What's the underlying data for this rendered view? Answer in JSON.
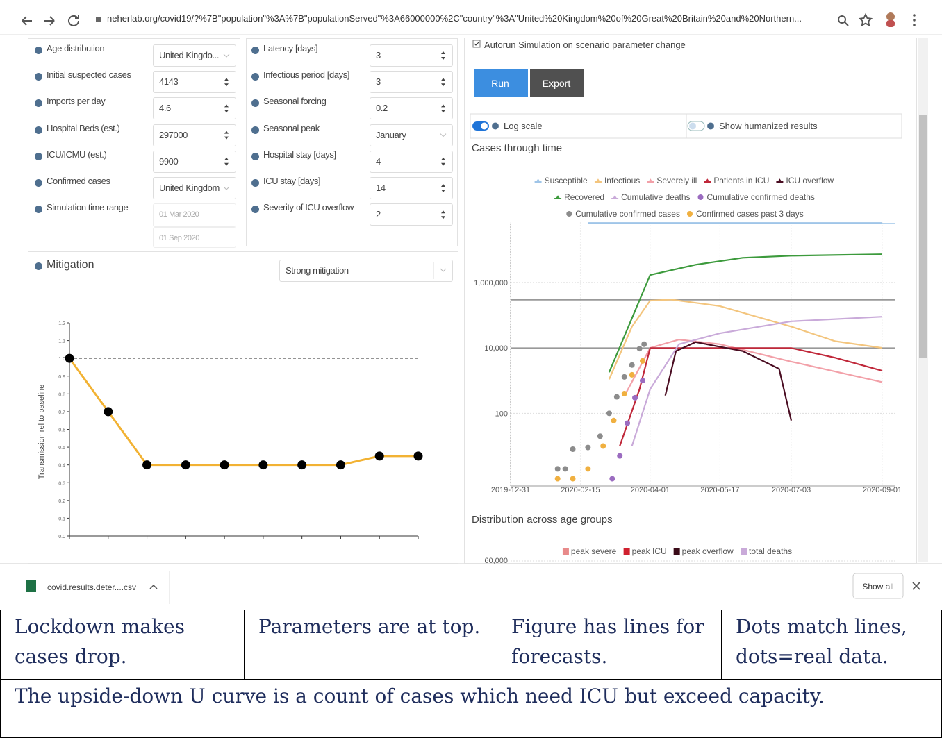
{
  "browser": {
    "url": "neherlab.org/covid19/?%7B\"population\"%3A%7B\"populationServed\"%3A66000000%2C\"country\"%3A\"United%20Kingdom%20of%20Great%20Britain%20and%20Northern..."
  },
  "parameters": {
    "epidemiology": [
      {
        "label": "Age distribution",
        "value": "United Kingdo..."
      },
      {
        "label": "Initial suspected cases",
        "value": "4143"
      },
      {
        "label": "Imports per day",
        "value": "4.6"
      },
      {
        "label": "Hospital Beds (est.)",
        "value": "297000"
      },
      {
        "label": "ICU/ICMU (est.)",
        "value": "9900"
      },
      {
        "label": "Confirmed cases",
        "value": "United Kingdom"
      },
      {
        "label": "Simulation time range",
        "value": "01 Mar 2020",
        "value2": "01 Sep 2020"
      }
    ],
    "disease": [
      {
        "label": "Latency [days]",
        "value": "3"
      },
      {
        "label": "Infectious period [days]",
        "value": "3"
      },
      {
        "label": "Seasonal forcing",
        "value": "0.2"
      },
      {
        "label": "Seasonal peak",
        "value": "January"
      },
      {
        "label": "Hospital stay [days]",
        "value": "4"
      },
      {
        "label": "ICU stay [days]",
        "value": "14"
      },
      {
        "label": "Severity of ICU overflow",
        "value": "2"
      }
    ]
  },
  "mitigation": {
    "title": "Mitigation",
    "preset": "Strong mitigation",
    "chart": {
      "type": "line",
      "y_label": "Transmission rel to baseline",
      "color": "#f2b233",
      "values": [
        1.0,
        0.7,
        0.4,
        0.4,
        0.4,
        0.4,
        0.4,
        0.4,
        0.45,
        0.45
      ],
      "baseline": 1.0,
      "ylim": [
        0,
        1.2
      ],
      "yticks": [
        {
          "value": 0,
          "label": "0.0"
        },
        0.1,
        0.2,
        0.3,
        0.4,
        0.5,
        0.6,
        0.7,
        0.8,
        0.9,
        {
          "value": 1,
          "label": "1.0"
        },
        1.1,
        1.2
      ]
    }
  },
  "controls": {
    "autorun": "Autorun Simulation on scenario parameter change",
    "run": "Run",
    "export": "Export",
    "log_scale": "Log scale",
    "humanized": "Show humanized results"
  },
  "cases_chart": {
    "type": "line",
    "title": "Cases through time",
    "log_scale": true,
    "xlim": [
      "2019-12-31",
      "2020-09-01"
    ],
    "xticks": [
      "2019-12-31",
      "2020-02-15",
      "2020-04-01",
      "2020-05-17",
      "2020-07-03",
      "2020-09-01"
    ],
    "ylim": [
      0.6,
      70000000
    ],
    "yticks": [
      100,
      {
        "value": 10000,
        "label": "10,000"
      },
      {
        "value": 1000000,
        "label": "1,000,000"
      }
    ],
    "series": [
      {
        "name": "Susceptible",
        "color": "#9fc5e8",
        "kind": "line",
        "x": [
          "2020-02-20",
          "2020-09-01"
        ],
        "values": [
          66000000,
          66000000
        ]
      },
      {
        "name": "Infectious",
        "color": "#f3c57e",
        "kind": "line",
        "x": [
          "2020-03-05",
          "2020-03-20",
          "2020-04-01",
          "2020-04-15",
          "2020-05-17",
          "2020-07-03",
          "2020-08-01",
          "2020-09-01"
        ],
        "values": [
          1100,
          45000,
          280000,
          300000,
          190000,
          45000,
          16000,
          10000
        ]
      },
      {
        "name": "Severely ill",
        "color": "#f2a0a8",
        "kind": "line",
        "x": [
          "2020-03-15",
          "2020-04-01",
          "2020-04-20",
          "2020-05-17",
          "2020-07-03",
          "2020-09-01"
        ],
        "values": [
          340,
          10000,
          18000,
          13000,
          3800,
          900
        ]
      },
      {
        "name": "Patients in ICU",
        "color": "#c0283a",
        "kind": "line",
        "x": [
          "2020-03-12",
          "2020-03-25",
          "2020-04-01",
          "2020-07-03",
          "2020-08-01",
          "2020-09-01"
        ],
        "values": [
          10,
          550,
          9900,
          9900,
          5000,
          2000
        ]
      },
      {
        "name": "ICU overflow",
        "color": "#4a0d22",
        "kind": "line",
        "x": [
          "2020-04-11",
          "2020-04-18",
          "2020-05-01",
          "2020-06-01",
          "2020-06-25",
          "2020-07-03"
        ],
        "values": [
          350,
          8000,
          15000,
          8000,
          2300,
          60
        ]
      },
      {
        "name": "Recovered",
        "color": "#3c9a3c",
        "kind": "line",
        "x": [
          "2020-03-05",
          "2020-04-01",
          "2020-05-01",
          "2020-06-01",
          "2020-07-03",
          "2020-09-01"
        ],
        "values": [
          1800,
          1700000,
          3500000,
          5700000,
          6600000,
          7300000
        ]
      },
      {
        "name": "Cumulative deaths",
        "color": "#c9aad9",
        "kind": "line",
        "x": [
          "2020-03-20",
          "2020-04-01",
          "2020-04-20",
          "2020-05-17",
          "2020-07-03",
          "2020-09-01"
        ],
        "values": [
          10,
          550,
          13000,
          28000,
          65000,
          90000
        ]
      },
      {
        "name": "Cumulative confirmed deaths",
        "color": "#9b6cc0",
        "kind": "dots",
        "x": [
          "2020-03-07",
          "2020-03-12",
          "2020-03-17",
          "2020-03-22",
          "2020-03-27"
        ],
        "values": [
          1,
          5,
          50,
          300,
          1000
        ]
      },
      {
        "name": "Cumulative confirmed cases",
        "color": "#8c8c8c",
        "kind": "dots",
        "x": [
          "2020-01-31",
          "2020-02-05",
          "2020-02-10",
          "2020-02-20",
          "2020-02-28",
          "2020-03-05",
          "2020-03-10",
          "2020-03-15",
          "2020-03-20",
          "2020-03-25",
          "2020-03-28"
        ],
        "values": [
          2,
          2,
          8,
          9,
          20,
          100,
          320,
          1300,
          3000,
          9500,
          13000
        ]
      },
      {
        "name": "Confirmed cases past 3 days",
        "color": "#f0b040",
        "kind": "dots",
        "x": [
          "2020-01-31",
          "2020-02-10",
          "2020-02-20",
          "2020-03-01",
          "2020-03-08",
          "2020-03-15",
          "2020-03-20",
          "2020-03-27"
        ],
        "values": [
          1,
          1,
          2,
          10,
          60,
          400,
          1500,
          4000
        ]
      }
    ]
  },
  "age_chart": {
    "title": "Distribution across age groups",
    "legend": [
      {
        "name": "peak severe",
        "color": "#e88a8a"
      },
      {
        "name": "peak ICU",
        "color": "#d0202e"
      },
      {
        "name": "peak overflow",
        "color": "#3a0a18"
      },
      {
        "name": "total deaths",
        "color": "#c9aad9"
      }
    ],
    "yticks": [
      {
        "value": 60000,
        "label": "60,000"
      }
    ]
  },
  "downloads": {
    "file": "covid.results.deter....csv",
    "show_all": "Show all"
  },
  "notes": {
    "row1": [
      "Lockdown makes cases drop.",
      "Parameters are at top.",
      "Figure has lines for forecasts.",
      "Dots match lines, dots=real data."
    ],
    "row2": "The upside-down U curve is a count of cases which need ICU but exceed capacity."
  }
}
